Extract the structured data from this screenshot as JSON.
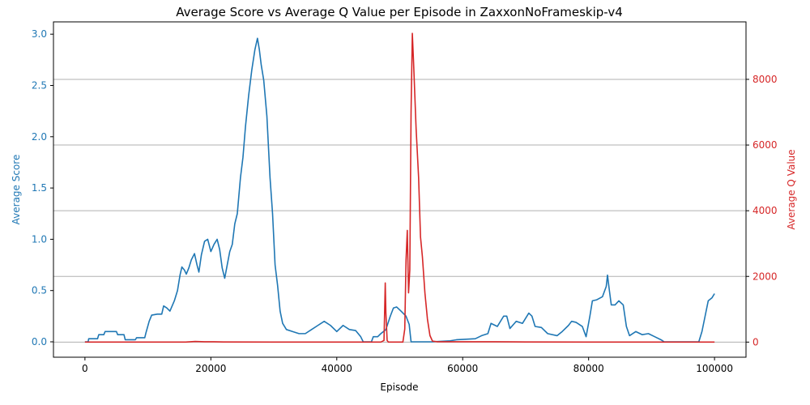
{
  "chart_data": {
    "type": "line",
    "title": "Average Score vs Average Q Value per Episode in ZaxxonNoFrameskip-v4",
    "xlabel": "Episode",
    "ylabel_left": "Average Score",
    "ylabel_right": "Average Q Value",
    "xlim": [
      -5000,
      105000
    ],
    "ylim_left": [
      -0.15,
      3.12
    ],
    "ylim_right": [
      -460,
      9750
    ],
    "x_ticks": [
      0,
      20000,
      40000,
      60000,
      80000,
      100000
    ],
    "y_left_ticks": [
      0.0,
      0.5,
      1.0,
      1.5,
      2.0,
      2.5,
      3.0
    ],
    "y_right_ticks": [
      0,
      2000,
      4000,
      6000,
      8000
    ],
    "grid": "horizontal lines at right-axis ticks",
    "colors": {
      "score": "#1f77b4",
      "q": "#d62728",
      "grid": "#b0b0b0"
    },
    "series": [
      {
        "axis": "left",
        "points": [
          [
            0,
            0
          ],
          [
            500,
            0
          ],
          [
            600,
            0.03
          ],
          [
            2000,
            0.03
          ],
          [
            2200,
            0.07
          ],
          [
            3000,
            0.07
          ],
          [
            3200,
            0.1
          ],
          [
            5000,
            0.1
          ],
          [
            5200,
            0.07
          ],
          [
            6200,
            0.07
          ],
          [
            6400,
            0.02
          ],
          [
            8000,
            0.02
          ],
          [
            8200,
            0.04
          ],
          [
            9500,
            0.04
          ],
          [
            9700,
            0.09
          ],
          [
            10200,
            0.2
          ],
          [
            10600,
            0.26
          ],
          [
            11500,
            0.27
          ],
          [
            12200,
            0.27
          ],
          [
            12500,
            0.35
          ],
          [
            13000,
            0.33
          ],
          [
            13500,
            0.3
          ],
          [
            14200,
            0.4
          ],
          [
            14700,
            0.5
          ],
          [
            15100,
            0.65
          ],
          [
            15400,
            0.73
          ],
          [
            15800,
            0.7
          ],
          [
            16100,
            0.66
          ],
          [
            16500,
            0.72
          ],
          [
            16900,
            0.8
          ],
          [
            17400,
            0.86
          ],
          [
            17800,
            0.75
          ],
          [
            18100,
            0.68
          ],
          [
            18500,
            0.85
          ],
          [
            19000,
            0.98
          ],
          [
            19500,
            1.0
          ],
          [
            20000,
            0.88
          ],
          [
            20500,
            0.95
          ],
          [
            21000,
            1.0
          ],
          [
            21400,
            0.9
          ],
          [
            21800,
            0.72
          ],
          [
            22200,
            0.62
          ],
          [
            22600,
            0.75
          ],
          [
            23000,
            0.88
          ],
          [
            23400,
            0.95
          ],
          [
            23800,
            1.15
          ],
          [
            24200,
            1.25
          ],
          [
            24700,
            1.6
          ],
          [
            25100,
            1.8
          ],
          [
            25500,
            2.1
          ],
          [
            26000,
            2.4
          ],
          [
            26500,
            2.65
          ],
          [
            27000,
            2.85
          ],
          [
            27400,
            2.96
          ],
          [
            27700,
            2.85
          ],
          [
            28000,
            2.7
          ],
          [
            28400,
            2.55
          ],
          [
            28900,
            2.2
          ],
          [
            29400,
            1.6
          ],
          [
            29800,
            1.25
          ],
          [
            30200,
            0.75
          ],
          [
            30600,
            0.55
          ],
          [
            31000,
            0.3
          ],
          [
            31400,
            0.18
          ],
          [
            32000,
            0.12
          ],
          [
            33000,
            0.1
          ],
          [
            34000,
            0.08
          ],
          [
            35000,
            0.08
          ],
          [
            36000,
            0.12
          ],
          [
            37000,
            0.16
          ],
          [
            38000,
            0.2
          ],
          [
            39000,
            0.16
          ],
          [
            40000,
            0.1
          ],
          [
            41000,
            0.16
          ],
          [
            42000,
            0.12
          ],
          [
            43000,
            0.11
          ],
          [
            43800,
            0.05
          ],
          [
            44200,
            0
          ],
          [
            45500,
            0
          ],
          [
            45800,
            0.05
          ],
          [
            46500,
            0.05
          ],
          [
            47000,
            0.08
          ],
          [
            47800,
            0.12
          ],
          [
            48500,
            0.25
          ],
          [
            49000,
            0.33
          ],
          [
            49500,
            0.34
          ],
          [
            50200,
            0.3
          ],
          [
            51000,
            0.25
          ],
          [
            51500,
            0.17
          ],
          [
            51800,
            0
          ],
          [
            55000,
            0
          ],
          [
            58000,
            0.01
          ],
          [
            59000,
            0.02
          ],
          [
            62000,
            0.03
          ],
          [
            63000,
            0.06
          ],
          [
            64000,
            0.08
          ],
          [
            64500,
            0.18
          ],
          [
            65500,
            0.15
          ],
          [
            66500,
            0.25
          ],
          [
            67000,
            0.25
          ],
          [
            67500,
            0.13
          ],
          [
            68500,
            0.2
          ],
          [
            69500,
            0.18
          ],
          [
            70500,
            0.28
          ],
          [
            71000,
            0.25
          ],
          [
            71500,
            0.15
          ],
          [
            72500,
            0.14
          ],
          [
            73500,
            0.08
          ],
          [
            75000,
            0.06
          ],
          [
            75800,
            0.1
          ],
          [
            76800,
            0.16
          ],
          [
            77300,
            0.2
          ],
          [
            78000,
            0.19
          ],
          [
            79000,
            0.15
          ],
          [
            79600,
            0.05
          ],
          [
            80200,
            0.25
          ],
          [
            80600,
            0.4
          ],
          [
            81300,
            0.41
          ],
          [
            82200,
            0.44
          ],
          [
            82800,
            0.54
          ],
          [
            83000,
            0.65
          ],
          [
            83300,
            0.5
          ],
          [
            83600,
            0.36
          ],
          [
            84200,
            0.36
          ],
          [
            84800,
            0.4
          ],
          [
            85500,
            0.36
          ],
          [
            86000,
            0.15
          ],
          [
            86500,
            0.06
          ],
          [
            87500,
            0.1
          ],
          [
            88500,
            0.07
          ],
          [
            89500,
            0.08
          ],
          [
            90500,
            0.05
          ],
          [
            91500,
            0.02
          ],
          [
            92000,
            0
          ],
          [
            96000,
            0
          ],
          [
            97500,
            0
          ],
          [
            98000,
            0.1
          ],
          [
            98500,
            0.25
          ],
          [
            99000,
            0.4
          ],
          [
            99600,
            0.43
          ],
          [
            100000,
            0.47
          ]
        ]
      },
      {
        "axis": "right",
        "points": [
          [
            0,
            0
          ],
          [
            16000,
            0
          ],
          [
            17500,
            20
          ],
          [
            19000,
            10
          ],
          [
            20500,
            10
          ],
          [
            22000,
            5
          ],
          [
            30000,
            0
          ],
          [
            47000,
            0
          ],
          [
            47500,
            50
          ],
          [
            47700,
            1800
          ],
          [
            47800,
            900
          ],
          [
            48000,
            50
          ],
          [
            48200,
            0
          ],
          [
            50500,
            0
          ],
          [
            50800,
            400
          ],
          [
            51000,
            2500
          ],
          [
            51200,
            3400
          ],
          [
            51400,
            1500
          ],
          [
            51600,
            2200
          ],
          [
            51800,
            7000
          ],
          [
            52000,
            9400
          ],
          [
            52200,
            8500
          ],
          [
            52600,
            6500
          ],
          [
            53000,
            5000
          ],
          [
            53300,
            3200
          ],
          [
            53600,
            2600
          ],
          [
            54000,
            1500
          ],
          [
            54400,
            700
          ],
          [
            54800,
            200
          ],
          [
            55200,
            30
          ],
          [
            56000,
            10
          ],
          [
            60000,
            10
          ],
          [
            65000,
            10
          ],
          [
            70000,
            5
          ],
          [
            80000,
            0
          ],
          [
            100000,
            0
          ]
        ]
      }
    ]
  }
}
